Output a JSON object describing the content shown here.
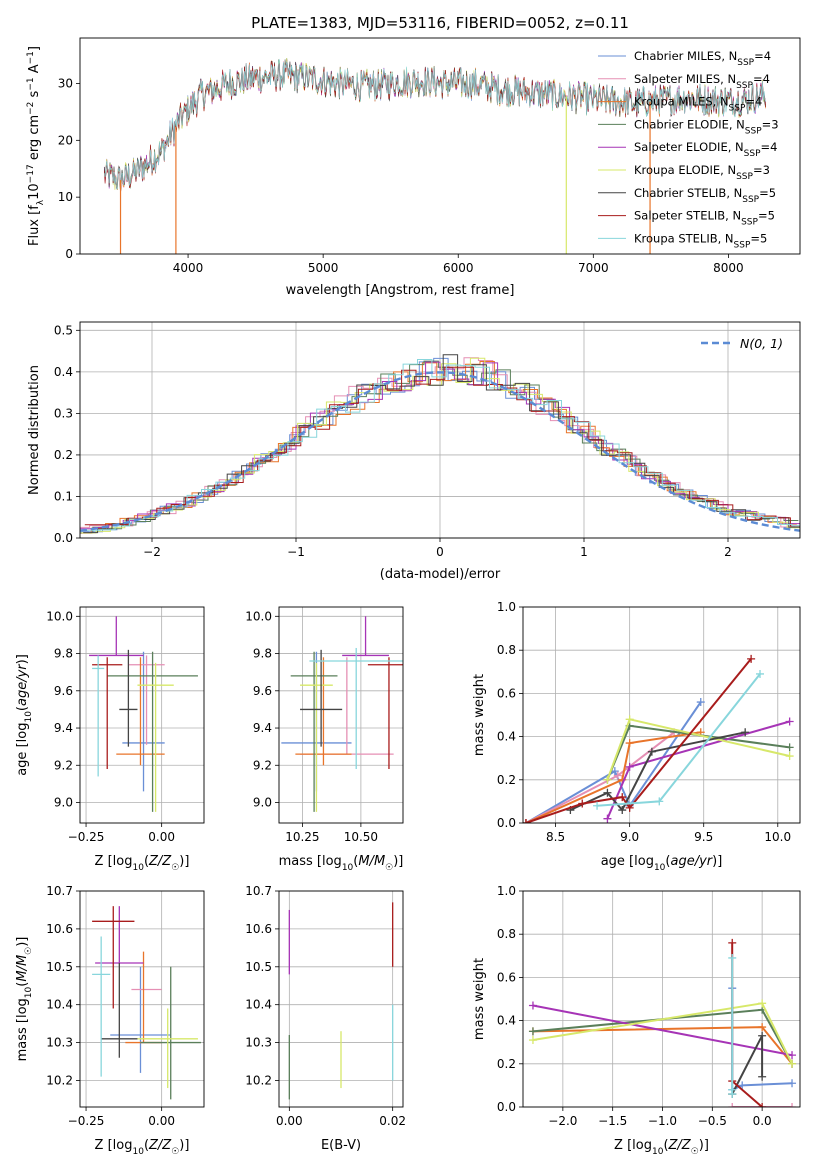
{
  "figure": {
    "title": "PLATE=1383, MJD=53116, FIBERID=0052, z=0.11"
  },
  "chart_data": [
    {
      "id": "spectrum",
      "type": "line",
      "xlabel": "wavelength [Angstrom, rest frame]",
      "ylabel": "Flux [f_λ10^-17 erg cm^-2 s^-1 A^-1]",
      "xlim": [
        3200,
        8530
      ],
      "ylim": [
        0,
        38
      ],
      "xticks": [
        4000,
        5000,
        6000,
        7000,
        8000
      ],
      "yticks": [
        0,
        10,
        20,
        30
      ],
      "grid": false,
      "legend_position": "top-right",
      "spectrum_envelope": {
        "x": [
          3380,
          3500,
          3650,
          3800,
          3950,
          4100,
          4300,
          4500,
          4700,
          4900,
          5100,
          5300,
          5500,
          5700,
          5900,
          6100,
          6300,
          6500,
          6700,
          6900,
          7100,
          7300,
          7500,
          7700,
          7900,
          8100,
          8280
        ],
        "y": [
          14,
          13,
          15,
          18,
          24,
          28,
          30,
          31,
          31.5,
          31,
          30,
          29.5,
          30,
          30.5,
          30,
          30,
          29,
          28.5,
          28,
          27.5,
          27,
          26.5,
          27,
          27.5,
          27,
          27,
          28
        ]
      },
      "series": [
        {
          "name": "Chabrier MILES, N_SSP=4",
          "color": "#6a8fd6"
        },
        {
          "name": "Salpeter MILES, N_SSP=4",
          "color": "#e58fb4"
        },
        {
          "name": "Kroupa MILES, N_SSP=4",
          "color": "#e8742a"
        },
        {
          "name": "Chabrier ELODIE, N_SSP=3",
          "color": "#5a7f5a"
        },
        {
          "name": "Salpeter ELODIE, N_SSP=4",
          "color": "#a634b6"
        },
        {
          "name": "Kroupa ELODIE, N_SSP=3",
          "color": "#d7e86a"
        },
        {
          "name": "Chabrier STELIB, N_SSP=5",
          "color": "#444444"
        },
        {
          "name": "Salpeter STELIB, N_SSP=5",
          "color": "#a81c1c"
        },
        {
          "name": "Kroupa STELIB, N_SSP=5",
          "color": "#88d6dc"
        }
      ]
    },
    {
      "id": "residuals",
      "type": "area",
      "xlabel": "(data-model)/error",
      "ylabel": "Normed distribution",
      "xlim": [
        -2.5,
        2.5
      ],
      "ylim": [
        0,
        0.52
      ],
      "xticks": [
        -2,
        -1,
        0,
        1,
        2
      ],
      "yticks": [
        0.0,
        0.1,
        0.2,
        0.3,
        0.4,
        0.5
      ],
      "grid": true,
      "legend_position": "top-right",
      "legend": "N(0, 1)",
      "gaussian": {
        "mean": 0,
        "sigma": 1,
        "color": "#5b8bd4"
      },
      "bin_width": 0.1,
      "hist_profile": [
        0.018,
        0.022,
        0.025,
        0.03,
        0.035,
        0.04,
        0.05,
        0.055,
        0.065,
        0.075,
        0.085,
        0.1,
        0.11,
        0.125,
        0.14,
        0.15,
        0.165,
        0.18,
        0.19,
        0.21,
        0.23,
        0.25,
        0.27,
        0.29,
        0.31,
        0.33,
        0.34,
        0.36,
        0.37,
        0.38,
        0.39,
        0.4,
        0.41,
        0.42,
        0.43,
        0.44,
        0.46,
        0.45,
        0.44,
        0.43,
        0.42,
        0.41,
        0.4,
        0.39,
        0.38,
        0.37,
        0.35,
        0.34,
        0.32,
        0.3,
        0.28,
        0.27,
        0.25,
        0.23,
        0.21,
        0.2,
        0.18,
        0.16,
        0.15,
        0.13,
        0.12,
        0.11,
        0.1,
        0.085,
        0.075,
        0.065,
        0.055,
        0.05,
        0.04,
        0.035,
        0.03,
        0.025,
        0.022,
        0.02,
        0.02,
        0.02,
        0.02,
        0.02,
        0.02,
        0.02,
        0.02,
        0.02,
        0.02,
        0.02,
        0.02,
        0.02,
        0.02,
        0.02,
        0.02,
        0.02,
        0.02,
        0.02,
        0.02,
        0.02,
        0.02,
        0.02,
        0.02,
        0.02,
        0.02,
        0.02
      ]
    },
    {
      "id": "age_vs_z",
      "type": "scatter",
      "xlabel": "Z [log10(Z/Z☉)]",
      "ylabel": "age [log10(age/yr)]",
      "xlim": [
        -0.27,
        0.14
      ],
      "ylim": [
        8.89,
        10.05
      ],
      "xticks": [
        -0.25,
        0.0
      ],
      "xticklabels": [
        "−0.25",
        "0.00"
      ],
      "yticks": [
        9.0,
        9.2,
        9.4,
        9.6,
        9.8,
        10.0
      ],
      "grid": true,
      "points": [
        {
          "color": "#6a8fd6",
          "x": -0.06,
          "xerr": 0.07,
          "y": 9.32,
          "yerr": [
            0.26,
            0.49
          ]
        },
        {
          "color": "#e58fb4",
          "x": -0.05,
          "xerr": 0.06,
          "y": 9.74,
          "yerr": [
            0.43,
            0.05
          ]
        },
        {
          "color": "#e8742a",
          "x": -0.07,
          "xerr": 0.08,
          "y": 9.26,
          "yerr": [
            0.06,
            0.52
          ]
        },
        {
          "color": "#5a7f5a",
          "x": -0.03,
          "xerr": 0.15,
          "y": 9.68,
          "yerr": [
            0.73,
            0.13
          ]
        },
        {
          "color": "#a634b6",
          "x": -0.15,
          "xerr": 0.09,
          "y": 9.79,
          "yerr": [
            0.0,
            0.21
          ]
        },
        {
          "color": "#d7e86a",
          "x": -0.02,
          "xerr": 0.06,
          "y": 9.63,
          "yerr": [
            0.68,
            0.12
          ]
        },
        {
          "color": "#444444",
          "x": -0.11,
          "xerr": 0.03,
          "y": 9.5,
          "yerr": [
            0.2,
            0.32
          ]
        },
        {
          "color": "#a81c1c",
          "x": -0.18,
          "xerr": 0.05,
          "y": 9.74,
          "yerr": [
            0.56,
            0.04
          ]
        },
        {
          "color": "#88d6dc",
          "x": -0.21,
          "xerr": 0.02,
          "y": 9.72,
          "yerr": [
            0.58,
            0.07
          ]
        }
      ]
    },
    {
      "id": "age_vs_mass",
      "type": "scatter",
      "xlabel": "mass [log10(M/M☉)]",
      "ylabel": "",
      "xlim": [
        10.15,
        10.68
      ],
      "ylim": [
        8.89,
        10.05
      ],
      "xticks": [
        10.25,
        10.5
      ],
      "xticklabels": [
        "10.25",
        "10.50"
      ],
      "yticks": [
        9.0,
        9.2,
        9.4,
        9.6,
        9.8,
        10.0
      ],
      "grid": true,
      "points": [
        {
          "color": "#6a8fd6",
          "x": 10.31,
          "xerr": 0.15,
          "y": 9.32,
          "yerr": [
            0.26,
            0.49
          ]
        },
        {
          "color": "#e58fb4",
          "x": 10.44,
          "xerr": 0.2,
          "y": 9.26,
          "yerr": [
            0.0,
            0.52
          ]
        },
        {
          "color": "#e8742a",
          "x": 10.34,
          "xerr": 0.12,
          "y": 9.26,
          "yerr": [
            0.06,
            0.52
          ]
        },
        {
          "color": "#5a7f5a",
          "x": 10.3,
          "xerr": 0.1,
          "y": 9.68,
          "yerr": [
            0.73,
            0.13
          ]
        },
        {
          "color": "#a634b6",
          "x": 10.52,
          "xerr": 0.1,
          "y": 9.79,
          "yerr": [
            0.0,
            0.21
          ]
        },
        {
          "color": "#d7e86a",
          "x": 10.31,
          "xerr": 0.07,
          "y": 9.63,
          "yerr": [
            0.68,
            0.12
          ]
        },
        {
          "color": "#444444",
          "x": 10.33,
          "xerr": 0.09,
          "y": 9.5,
          "yerr": [
            0.2,
            0.32
          ]
        },
        {
          "color": "#a81c1c",
          "x": 10.62,
          "xerr": 0.09,
          "y": 9.74,
          "yerr": [
            0.56,
            0.04
          ]
        },
        {
          "color": "#88d6dc",
          "x": 10.48,
          "xerr": 0.2,
          "y": 9.76,
          "yerr": [
            0.58,
            0.07
          ]
        }
      ]
    },
    {
      "id": "weight_vs_age",
      "type": "line",
      "xlabel": "age [log10(age/yr)]",
      "ylabel": "mass weight",
      "xlim": [
        8.28,
        10.15
      ],
      "ylim": [
        0,
        1
      ],
      "xticks": [
        8.5,
        9.0,
        9.5,
        10.0
      ],
      "yticks": [
        0.0,
        0.2,
        0.4,
        0.6,
        0.8,
        1.0
      ],
      "grid": true,
      "series": [
        {
          "color": "#6a8fd6",
          "x": [
            8.3,
            8.9,
            9.0,
            9.48
          ],
          "y": [
            0.0,
            0.24,
            0.08,
            0.56
          ]
        },
        {
          "color": "#e58fb4",
          "x": [
            8.3,
            8.92,
            9.3
          ],
          "y": [
            0.0,
            0.22,
            0.42
          ]
        },
        {
          "color": "#e8742a",
          "x": [
            8.3,
            8.95,
            9.0,
            9.48
          ],
          "y": [
            0.0,
            0.2,
            0.37,
            0.42
          ]
        },
        {
          "color": "#5a7f5a",
          "x": [
            8.85,
            9.0,
            10.08
          ],
          "y": [
            0.2,
            0.45,
            0.35
          ]
        },
        {
          "color": "#a634b6",
          "x": [
            8.85,
            9.0,
            10.08
          ],
          "y": [
            0.02,
            0.26,
            0.47
          ]
        },
        {
          "color": "#d7e86a",
          "x": [
            8.85,
            9.0,
            10.08
          ],
          "y": [
            0.2,
            0.48,
            0.31
          ]
        },
        {
          "color": "#444444",
          "x": [
            8.6,
            8.85,
            8.95,
            9.15,
            9.78
          ],
          "y": [
            0.06,
            0.14,
            0.06,
            0.33,
            0.42
          ]
        },
        {
          "color": "#a81c1c",
          "x": [
            8.3,
            8.68,
            8.95,
            9.0,
            9.82
          ],
          "y": [
            0.0,
            0.09,
            0.12,
            0.07,
            0.76
          ]
        },
        {
          "color": "#88d6dc",
          "x": [
            8.78,
            9.2,
            9.88
          ],
          "y": [
            0.08,
            0.1,
            0.69
          ]
        }
      ]
    },
    {
      "id": "mass_vs_z",
      "type": "scatter",
      "xlabel": "Z [log10(Z/Z☉)]",
      "ylabel": "mass [log10(M/M☉)]",
      "xlim": [
        -0.27,
        0.14
      ],
      "ylim": [
        10.13,
        10.7
      ],
      "xticks": [
        -0.25,
        0.0
      ],
      "xticklabels": [
        "−0.25",
        "0.00"
      ],
      "yticks": [
        10.2,
        10.3,
        10.4,
        10.5,
        10.6,
        10.7
      ],
      "grid": true,
      "points": [
        {
          "color": "#6a8fd6",
          "x": -0.07,
          "xerr": 0.1,
          "y": 10.32,
          "yerr": [
            0.1,
            0.18
          ]
        },
        {
          "color": "#e58fb4",
          "x": -0.05,
          "xerr": 0.05,
          "y": 10.44,
          "yerr": [
            0.0,
            0.0
          ]
        },
        {
          "color": "#e8742a",
          "x": -0.06,
          "xerr": 0.06,
          "y": 10.3,
          "yerr": [
            0.0,
            0.24
          ]
        },
        {
          "color": "#5a7f5a",
          "x": 0.03,
          "xerr": 0.1,
          "y": 10.3,
          "yerr": [
            0.15,
            0.2
          ]
        },
        {
          "color": "#a634b6",
          "x": -0.14,
          "xerr": 0.08,
          "y": 10.51,
          "yerr": [
            0.0,
            0.15
          ]
        },
        {
          "color": "#d7e86a",
          "x": 0.02,
          "xerr": 0.1,
          "y": 10.31,
          "yerr": [
            0.13,
            0.08
          ]
        },
        {
          "color": "#444444",
          "x": -0.14,
          "xerr": 0.06,
          "y": 10.31,
          "yerr": [
            0.05,
            0.2
          ]
        },
        {
          "color": "#a81c1c",
          "x": -0.16,
          "xerr": 0.07,
          "y": 10.62,
          "yerr": [
            0.23,
            0.04
          ]
        },
        {
          "color": "#88d6dc",
          "x": -0.2,
          "xerr": 0.03,
          "y": 10.48,
          "yerr": [
            0.27,
            0.1
          ]
        }
      ]
    },
    {
      "id": "mass_vs_ebv",
      "type": "scatter",
      "xlabel": "E(B-V)",
      "ylabel": "",
      "xlim": [
        -0.002,
        0.022
      ],
      "ylim": [
        10.13,
        10.7
      ],
      "xticks": [
        0.0,
        0.02
      ],
      "xticklabels": [
        "0.00",
        "0.02"
      ],
      "yticks": [
        10.2,
        10.3,
        10.4,
        10.5,
        10.6,
        10.7
      ],
      "grid": true,
      "points": [
        {
          "color": "#a634b6",
          "x": 0.0,
          "y": 10.57,
          "yerr": [
            0.09,
            0.08
          ]
        },
        {
          "color": "#5a7f5a",
          "x": 0.0,
          "y": 10.25,
          "yerr": [
            0.1,
            0.07
          ]
        },
        {
          "color": "#d7e86a",
          "x": 0.01,
          "y": 10.25,
          "yerr": [
            0.07,
            0.08
          ]
        },
        {
          "color": "#a81c1c",
          "x": 0.02,
          "y": 10.58,
          "yerr": [
            0.08,
            0.09
          ]
        },
        {
          "color": "#88d6dc",
          "x": 0.02,
          "y": 10.3,
          "yerr": [
            0.1,
            0.1
          ]
        }
      ]
    },
    {
      "id": "weight_vs_z",
      "type": "line",
      "xlabel": "Z [log10(Z/Z☉)]",
      "ylabel": "mass weight",
      "xlim": [
        -2.4,
        0.38
      ],
      "ylim": [
        0,
        1
      ],
      "xticks": [
        -2.0,
        -1.5,
        -1.0,
        -0.5,
        0.0
      ],
      "yticks": [
        0.0,
        0.2,
        0.4,
        0.6,
        0.8,
        1.0
      ],
      "grid": true,
      "series": [
        {
          "color": "#6a8fd6",
          "x": [
            -0.3,
            -0.3,
            -0.2,
            0.3
          ],
          "y": [
            0.55,
            0.08,
            0.1,
            0.11
          ]
        },
        {
          "color": "#e58fb4",
          "x": [
            -0.3,
            0.3
          ],
          "y": [
            0.0,
            0.0
          ]
        },
        {
          "color": "#e8742a",
          "x": [
            -2.3,
            0.0,
            0.3
          ],
          "y": [
            0.35,
            0.37,
            0.2
          ]
        },
        {
          "color": "#5a7f5a",
          "x": [
            -2.3,
            0.0,
            0.3
          ],
          "y": [
            0.35,
            0.45,
            0.2
          ]
        },
        {
          "color": "#a634b6",
          "x": [
            -2.3,
            0.3
          ],
          "y": [
            0.47,
            0.24
          ]
        },
        {
          "color": "#d7e86a",
          "x": [
            -2.3,
            0.0,
            0.3
          ],
          "y": [
            0.31,
            0.48,
            0.2
          ]
        },
        {
          "color": "#444444",
          "x": [
            -0.3,
            0.0,
            0.0
          ],
          "y": [
            0.06,
            0.33,
            0.14
          ]
        },
        {
          "color": "#a81c1c",
          "x": [
            -0.3,
            -0.3,
            0.0
          ],
          "y": [
            0.76,
            0.12,
            0.0
          ]
        },
        {
          "color": "#88d6dc",
          "x": [
            -0.3,
            -0.3,
            -0.3
          ],
          "y": [
            0.69,
            0.08,
            0.06
          ]
        }
      ]
    }
  ]
}
